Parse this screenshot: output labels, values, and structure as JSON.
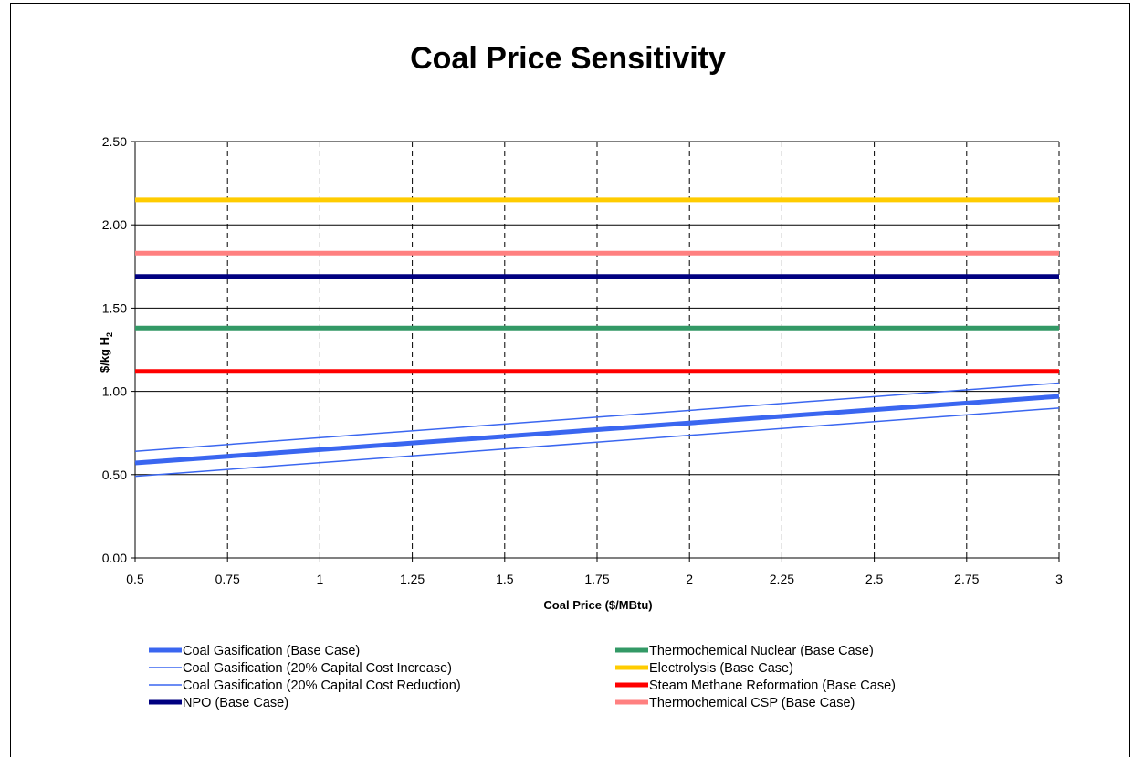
{
  "chart_data": {
    "type": "line",
    "title": "Coal Price Sensitivity",
    "xlabel": "Coal Price ($/MBtu)",
    "ylabel": "$/kg H",
    "ylabel_subscript": "2",
    "xlim": [
      0.5,
      3
    ],
    "ylim": [
      0,
      2.5
    ],
    "x_ticks": [
      "0.5",
      "0.75",
      "1",
      "1.25",
      "1.5",
      "1.75",
      "2",
      "2.25",
      "2.5",
      "2.75",
      "3"
    ],
    "y_ticks": [
      "0.00",
      "0.50",
      "1.00",
      "1.50",
      "2.00",
      "2.50"
    ],
    "grid": "horizontal solid, vertical dashed",
    "legend_placement": "bottom",
    "series": [
      {
        "name": "Coal Gasification (Base Case)",
        "color": "#3a66f0",
        "weight": "thick",
        "x": [
          0.5,
          3
        ],
        "y": [
          0.57,
          0.97
        ]
      },
      {
        "name": "Coal Gasification (20% Capital Cost Increase)",
        "color": "#3a66f0",
        "weight": "thin",
        "x": [
          0.5,
          3
        ],
        "y": [
          0.64,
          1.05
        ]
      },
      {
        "name": "Coal Gasification (20% Capital Cost Reduction)",
        "color": "#3a66f0",
        "weight": "thin",
        "x": [
          0.5,
          3
        ],
        "y": [
          0.49,
          0.9
        ]
      },
      {
        "name": "NPO (Base Case)",
        "color": "#000080",
        "weight": "thick",
        "x": [
          0.5,
          3
        ],
        "y": [
          1.69,
          1.69
        ]
      },
      {
        "name": "Thermochemical Nuclear (Base Case)",
        "color": "#339966",
        "weight": "thick",
        "x": [
          0.5,
          3
        ],
        "y": [
          1.38,
          1.38
        ]
      },
      {
        "name": "Electrolysis (Base Case)",
        "color": "#ffcc00",
        "weight": "thick",
        "x": [
          0.5,
          3
        ],
        "y": [
          2.15,
          2.15
        ]
      },
      {
        "name": "Steam Methane Reformation (Base Case)",
        "color": "#ff0000",
        "weight": "thick",
        "x": [
          0.5,
          3
        ],
        "y": [
          1.12,
          1.12
        ]
      },
      {
        "name": "Thermochemical CSP (Base Case)",
        "color": "#ff8080",
        "weight": "thick",
        "x": [
          0.5,
          3
        ],
        "y": [
          1.83,
          1.83
        ]
      }
    ]
  }
}
